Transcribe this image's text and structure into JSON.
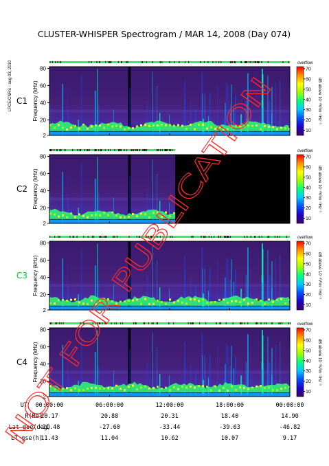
{
  "title": "CLUSTER-WHISPER Spectrogram / MAR 14, 2008 (Day 074)",
  "side_label": "LPCE/CNRS - aug 03, 2010",
  "watermark": "NOT FOR PUBLICATION",
  "chart_data": {
    "type": "heatmap",
    "panels": [
      {
        "name": "C1",
        "color": "#000000",
        "blank_after_hour": null
      },
      {
        "name": "C2",
        "color": "#000000",
        "blank_after_hour": 12.55
      },
      {
        "name": "C3",
        "color": "#00cc33",
        "blank_after_hour": null
      },
      {
        "name": "C4",
        "color": "#000000",
        "blank_after_hour": null
      }
    ],
    "ylabel": "Frequency (kHz)",
    "y_ticks": [
      "2",
      "20",
      "40",
      "60",
      "80"
    ],
    "y_tick_values": [
      2,
      20,
      40,
      60,
      80
    ],
    "ylim": [
      2,
      82
    ],
    "xlim_hours": [
      0,
      24
    ],
    "colorbar": {
      "label": "dB above 10⁻⁸V²m⁻²Hz⁻¹",
      "top_label": "overflow",
      "ticks": [
        "10",
        "20",
        "30",
        "40",
        "50",
        "60",
        "70"
      ],
      "range": [
        5,
        72
      ],
      "colors": [
        "#3b0066",
        "#2000c8",
        "#0050ff",
        "#00c8ff",
        "#00ff80",
        "#a0ff00",
        "#ffff00",
        "#ff9000",
        "#ff0000"
      ]
    },
    "ephemeris": {
      "row_labels": [
        "UT",
        "R(Re)",
        "Lat_gse(deg)",
        "LT_gse(h)"
      ],
      "columns": [
        [
          "00:00:00",
          "20.17",
          "-21.48",
          "11.43"
        ],
        [
          "06:00:00",
          "20.88",
          "-27.60",
          "11.04"
        ],
        [
          "12:00:00",
          "20.31",
          "-33.44",
          "10.62"
        ],
        [
          "18:00:00",
          "18.40",
          "-39.63",
          "10.07"
        ],
        [
          "00:00:00",
          "14.90",
          "-46.82",
          "9.17"
        ]
      ]
    }
  }
}
